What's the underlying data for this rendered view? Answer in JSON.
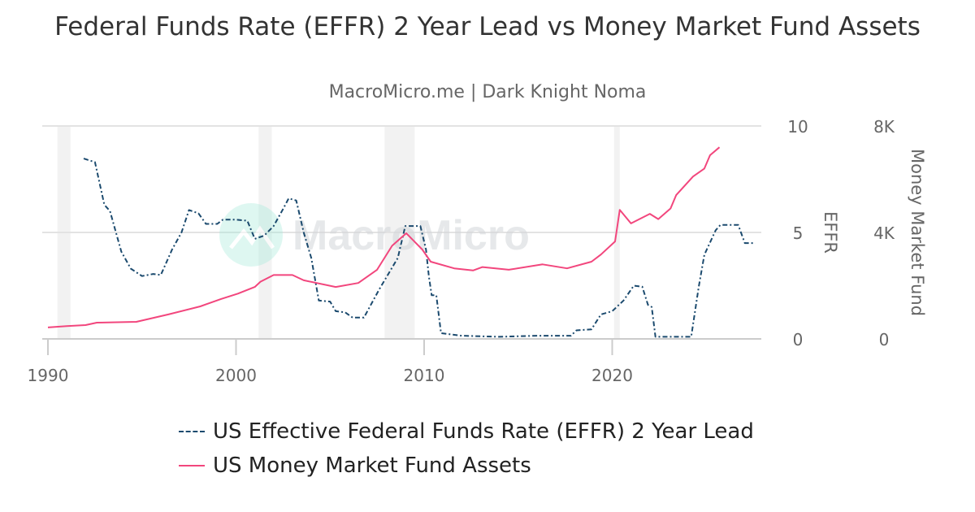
{
  "header": {
    "title": "Federal Funds Rate (EFFR) 2 Year Lead vs Money Market Fund Assets",
    "subtitle": "MacroMicro.me | Dark Knight Noma"
  },
  "watermark": "MacroMicro",
  "chart_data": {
    "type": "line",
    "title": "Federal Funds Rate (EFFR) 2 Year Lead vs Money Market Fund Assets",
    "x_ticks": [
      "1990",
      "2000",
      "2010",
      "2020"
    ],
    "xlim": [
      1989.8,
      2027.8
    ],
    "y_axes": [
      {
        "label": "EFFR",
        "ticks": [
          "0",
          "5",
          "10"
        ],
        "range": [
          0,
          10
        ],
        "position": "right"
      },
      {
        "label": "Money Market Fund",
        "ticks": [
          "0",
          "4K",
          "8K"
        ],
        "range": [
          0,
          8
        ],
        "position": "right"
      }
    ],
    "grid": true,
    "legend_position": "bottom",
    "recessions": [
      [
        1990.5,
        1991.2
      ],
      [
        2001.2,
        2001.9
      ],
      [
        2007.9,
        2009.5
      ],
      [
        2020.1,
        2020.4
      ]
    ],
    "series": [
      {
        "name": "US Effective Federal Funds Rate (EFFR) 2 Year Lead",
        "axis": 0,
        "color": "#1b4a6e",
        "style": "dashdot",
        "x": [
          1991.9,
          1992.5,
          1993.0,
          1993.3,
          1993.9,
          1994.4,
          1995.0,
          1995.6,
          1996.0,
          1996.6,
          1997.1,
          1997.5,
          1998.0,
          1998.4,
          1999.0,
          1999.3,
          2000.0,
          2000.6,
          2001.0,
          2001.5,
          2002.0,
          2002.5,
          2002.8,
          2003.2,
          2003.6,
          2004.0,
          2004.4,
          2005.0,
          2005.3,
          2005.8,
          2006.2,
          2006.8,
          2007.6,
          2008.6,
          2009.0,
          2009.8,
          2010.1,
          2010.25,
          2010.4,
          2010.65,
          2010.9,
          2012.0,
          2014.0,
          2016.0,
          2017.8,
          2018.1,
          2018.9,
          2019.4,
          2020.0,
          2020.6,
          2021.15,
          2021.6,
          2021.9,
          2022.1,
          2022.3,
          2024.2,
          2024.6,
          2024.9,
          2025.5,
          2025.75,
          2026.7,
          2027.05,
          2027.6
        ],
        "y": [
          8.47,
          8.3,
          6.3,
          6.0,
          4.1,
          3.3,
          2.95,
          3.05,
          3.0,
          4.2,
          5.0,
          6.05,
          5.9,
          5.4,
          5.4,
          5.6,
          5.6,
          5.55,
          4.7,
          4.85,
          5.3,
          6.1,
          6.6,
          6.5,
          5.0,
          3.8,
          1.8,
          1.75,
          1.3,
          1.25,
          1.0,
          1.0,
          2.3,
          3.8,
          5.3,
          5.3,
          4.2,
          2.95,
          2.05,
          2.05,
          0.27,
          0.15,
          0.1,
          0.15,
          0.15,
          0.4,
          0.45,
          1.15,
          1.3,
          1.8,
          2.5,
          2.45,
          1.6,
          1.5,
          0.1,
          0.1,
          2.45,
          3.95,
          5.1,
          5.35,
          5.35,
          4.5,
          4.5
        ]
      },
      {
        "name": "US Money Market Fund Assets",
        "axis": 1,
        "color": "#f2467d",
        "style": "solid",
        "x": [
          1990.0,
          1991.0,
          1992.0,
          1992.6,
          1994.7,
          1996.4,
          1998.1,
          1999.2,
          2000.1,
          2001.0,
          2001.3,
          2002.0,
          2003.0,
          2003.6,
          2005.3,
          2006.5,
          2007.5,
          2008.3,
          2009.05,
          2009.9,
          2010.35,
          2011.6,
          2012.6,
          2013.1,
          2014.5,
          2016.3,
          2017.6,
          2018.9,
          2019.4,
          2020.15,
          2020.4,
          2021.0,
          2022.0,
          2022.45,
          2023.1,
          2023.4,
          2024.3,
          2024.9,
          2025.2,
          2025.7
        ],
        "y": [
          0.43,
          0.48,
          0.52,
          0.61,
          0.64,
          0.92,
          1.22,
          1.5,
          1.7,
          1.95,
          2.15,
          2.4,
          2.4,
          2.2,
          1.95,
          2.1,
          2.6,
          3.5,
          3.97,
          3.36,
          2.9,
          2.65,
          2.57,
          2.7,
          2.6,
          2.8,
          2.65,
          2.9,
          3.17,
          3.66,
          4.85,
          4.34,
          4.7,
          4.5,
          4.9,
          5.4,
          6.1,
          6.4,
          6.9,
          7.2
        ]
      }
    ]
  }
}
